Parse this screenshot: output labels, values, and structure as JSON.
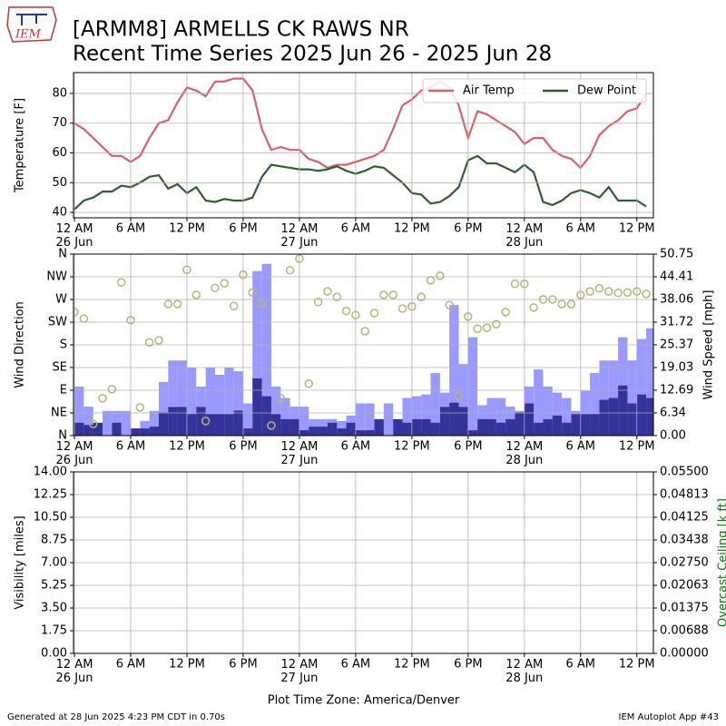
{
  "logo": "IEM",
  "title": "[ARMM8] ARMELLS CK RAWS NR",
  "subtitle": "Recent Time Series 2025 Jun 26 - 2025 Jun 28",
  "footer": {
    "left": "Generated at 28 Jun 2025 4:23 PM CDT in 0.70s",
    "right": "IEM Autoplot App #43"
  },
  "chart_data": [
    {
      "type": "line",
      "ylabel": "Temperature [F]",
      "grid": true,
      "legend": "upper right",
      "xlim": [
        "2025-06-25T23:54",
        "2025-06-28T13:46"
      ],
      "xticks": [
        {
          "value": "2025-06-26T00:00",
          "label": "12 AM\n26 Jun"
        },
        {
          "value": "2025-06-26T06:00",
          "label": "6 AM"
        },
        {
          "value": "2025-06-26T12:00",
          "label": "12 PM"
        },
        {
          "value": "2025-06-26T18:00",
          "label": "6 PM"
        },
        {
          "value": "2025-06-27T00:00",
          "label": "12 AM\n27 Jun"
        },
        {
          "value": "2025-06-27T06:00",
          "label": "6 AM"
        },
        {
          "value": "2025-06-27T12:00",
          "label": "12 PM"
        },
        {
          "value": "2025-06-27T18:00",
          "label": "6 PM"
        },
        {
          "value": "2025-06-28T00:00",
          "label": "12 AM\n28 Jun"
        },
        {
          "value": "2025-06-28T06:00",
          "label": "6 AM"
        },
        {
          "value": "2025-06-28T12:00",
          "label": "12 PM"
        }
      ],
      "ylim": [
        38.2,
        87.0
      ],
      "yticks": [
        40,
        50,
        60,
        70,
        80
      ],
      "x": [
        "2025-06-26T00:00",
        "2025-06-26T01:00",
        "2025-06-26T02:00",
        "2025-06-26T03:00",
        "2025-06-26T04:00",
        "2025-06-26T05:00",
        "2025-06-26T06:00",
        "2025-06-26T07:00",
        "2025-06-26T08:00",
        "2025-06-26T09:00",
        "2025-06-26T10:00",
        "2025-06-26T11:00",
        "2025-06-26T12:00",
        "2025-06-26T13:00",
        "2025-06-26T14:00",
        "2025-06-26T15:00",
        "2025-06-26T16:00",
        "2025-06-26T17:00",
        "2025-06-26T18:00",
        "2025-06-26T19:00",
        "2025-06-26T20:00",
        "2025-06-26T21:00",
        "2025-06-26T22:00",
        "2025-06-26T23:00",
        "2025-06-27T00:00",
        "2025-06-27T01:00",
        "2025-06-27T02:00",
        "2025-06-27T03:00",
        "2025-06-27T04:00",
        "2025-06-27T05:00",
        "2025-06-27T06:00",
        "2025-06-27T07:00",
        "2025-06-27T08:00",
        "2025-06-27T09:00",
        "2025-06-27T10:00",
        "2025-06-27T11:00",
        "2025-06-27T12:00",
        "2025-06-27T13:00",
        "2025-06-27T14:00",
        "2025-06-27T15:00",
        "2025-06-27T16:00",
        "2025-06-27T17:00",
        "2025-06-27T18:00",
        "2025-06-27T19:00",
        "2025-06-27T20:00",
        "2025-06-27T21:00",
        "2025-06-27T22:00",
        "2025-06-27T23:00",
        "2025-06-28T00:00",
        "2025-06-28T01:00",
        "2025-06-28T02:00",
        "2025-06-28T03:00",
        "2025-06-28T04:00",
        "2025-06-28T05:00",
        "2025-06-28T06:00",
        "2025-06-28T07:00",
        "2025-06-28T08:00",
        "2025-06-28T09:00",
        "2025-06-28T10:00",
        "2025-06-28T11:00",
        "2025-06-28T12:00",
        "2025-06-28T13:00"
      ],
      "series": [
        {
          "name": "Air Temp",
          "color": "#d9606b",
          "values": [
            70,
            68,
            65,
            62,
            59,
            59,
            57,
            59,
            65,
            70,
            71,
            77,
            82,
            81,
            79,
            84,
            84,
            85,
            85,
            81,
            68,
            61,
            62,
            61,
            61,
            58,
            57,
            55,
            56,
            56,
            57,
            58,
            59,
            61,
            68,
            76,
            78,
            81,
            82,
            84,
            82,
            76,
            65,
            74,
            73,
            71,
            69,
            67,
            63,
            65,
            65,
            61,
            59,
            58,
            55,
            59,
            66,
            69,
            71,
            74,
            75,
            80
          ]
        },
        {
          "name": "Dew Point",
          "color": "#2f5f31",
          "values": [
            41,
            44,
            45,
            47,
            47,
            49,
            48.5,
            50,
            52,
            52.5,
            48,
            49.5,
            46.5,
            48.5,
            44,
            43.5,
            44.5,
            44,
            44,
            45,
            52,
            56,
            55.5,
            55,
            54.5,
            54.5,
            54,
            54.5,
            55.5,
            54,
            53,
            54,
            55.5,
            55,
            52.5,
            50,
            46.5,
            46,
            43,
            43.5,
            45.5,
            48.5,
            57.5,
            59,
            56.5,
            56.5,
            55,
            53.5,
            56,
            53.5,
            43.5,
            42.5,
            44,
            46.5,
            47.5,
            46.5,
            45,
            48.5,
            44,
            44,
            44,
            42
          ]
        }
      ]
    },
    {
      "type": "wind",
      "ylabel": "Wind Direction",
      "y2label": "Wind Speed [mph]",
      "grid": true,
      "xlim": [
        "2025-06-25T23:54",
        "2025-06-28T13:46"
      ],
      "xticks": [
        {
          "value": "2025-06-26T00:00",
          "label": "12 AM\n26 Jun"
        },
        {
          "value": "2025-06-26T06:00",
          "label": "6 AM"
        },
        {
          "value": "2025-06-26T12:00",
          "label": "12 PM"
        },
        {
          "value": "2025-06-26T18:00",
          "label": "6 PM"
        },
        {
          "value": "2025-06-27T00:00",
          "label": "12 AM\n27 Jun"
        },
        {
          "value": "2025-06-27T06:00",
          "label": "6 AM"
        },
        {
          "value": "2025-06-27T12:00",
          "label": "12 PM"
        },
        {
          "value": "2025-06-27T18:00",
          "label": "6 PM"
        },
        {
          "value": "2025-06-28T00:00",
          "label": "12 AM\n28 Jun"
        },
        {
          "value": "2025-06-28T06:00",
          "label": "6 AM"
        },
        {
          "value": "2025-06-28T12:00",
          "label": "12 PM"
        }
      ],
      "ylim": [
        0,
        360
      ],
      "yticks": [
        {
          "value": 0,
          "label": "N"
        },
        {
          "value": 45,
          "label": "NE"
        },
        {
          "value": 90,
          "label": "E"
        },
        {
          "value": 135,
          "label": "SE"
        },
        {
          "value": 180,
          "label": "S"
        },
        {
          "value": 225,
          "label": "SW"
        },
        {
          "value": 270,
          "label": "W"
        },
        {
          "value": 315,
          "label": "NW"
        },
        {
          "value": 360,
          "label": "N"
        }
      ],
      "y2lim": [
        0,
        50.75
      ],
      "y2ticks": [
        {
          "value": 0,
          "label": "0.00"
        },
        {
          "value": 6.34375,
          "label": "6.34"
        },
        {
          "value": 12.6875,
          "label": "12.69"
        },
        {
          "value": 19.03125,
          "label": "19.03"
        },
        {
          "value": 25.375,
          "label": "25.37"
        },
        {
          "value": 31.71875,
          "label": "31.72"
        },
        {
          "value": 38.0625,
          "label": "38.06"
        },
        {
          "value": 44.40625,
          "label": "44.41"
        },
        {
          "value": 50.75,
          "label": "50.75"
        }
      ],
      "x": [
        "2025-06-26T00:00",
        "2025-06-26T01:00",
        "2025-06-26T02:00",
        "2025-06-26T03:00",
        "2025-06-26T04:00",
        "2025-06-26T05:00",
        "2025-06-26T06:00",
        "2025-06-26T07:00",
        "2025-06-26T08:00",
        "2025-06-26T09:00",
        "2025-06-26T10:00",
        "2025-06-26T11:00",
        "2025-06-26T12:00",
        "2025-06-26T13:00",
        "2025-06-26T14:00",
        "2025-06-26T15:00",
        "2025-06-26T16:00",
        "2025-06-26T17:00",
        "2025-06-26T18:00",
        "2025-06-26T19:00",
        "2025-06-26T20:00",
        "2025-06-26T21:00",
        "2025-06-26T22:00",
        "2025-06-26T23:00",
        "2025-06-27T00:00",
        "2025-06-27T01:00",
        "2025-06-27T02:00",
        "2025-06-27T03:00",
        "2025-06-27T04:00",
        "2025-06-27T05:00",
        "2025-06-27T06:00",
        "2025-06-27T07:00",
        "2025-06-27T08:00",
        "2025-06-27T09:00",
        "2025-06-27T10:00",
        "2025-06-27T11:00",
        "2025-06-27T12:00",
        "2025-06-27T13:00",
        "2025-06-27T14:00",
        "2025-06-27T15:00",
        "2025-06-27T16:00",
        "2025-06-27T17:00",
        "2025-06-27T18:00",
        "2025-06-27T19:00",
        "2025-06-27T20:00",
        "2025-06-27T21:00",
        "2025-06-27T22:00",
        "2025-06-27T23:00",
        "2025-06-28T00:00",
        "2025-06-28T01:00",
        "2025-06-28T02:00",
        "2025-06-28T03:00",
        "2025-06-28T04:00",
        "2025-06-28T05:00",
        "2025-06-28T06:00",
        "2025-06-28T07:00",
        "2025-06-28T08:00",
        "2025-06-28T09:00",
        "2025-06-28T10:00",
        "2025-06-28T11:00",
        "2025-06-28T12:00",
        "2025-06-28T13:00"
      ],
      "series": [
        {
          "type": "bar",
          "axis": "y2",
          "color": "#9999ff",
          "values": [
            13.7,
            8.1,
            3.5,
            6.9,
            6.9,
            6.9,
            2,
            4.1,
            6.9,
            15,
            21,
            21,
            19,
            13.7,
            19,
            17,
            19,
            18,
            9,
            46,
            48,
            13.7,
            10.5,
            8.1,
            8.1,
            4.6,
            4.6,
            4.6,
            4.1,
            5.6,
            9,
            9,
            2,
            9,
            0,
            10.5,
            11,
            11.5,
            17.5,
            12,
            36.5,
            20,
            27.5,
            8.5,
            10.5,
            10.5,
            8.1,
            6.9,
            13.7,
            18.5,
            13.7,
            12,
            10.5,
            6.9,
            12.5,
            17.5,
            21,
            21,
            27.5,
            21,
            27,
            30
          ]
        },
        {
          "type": "bar",
          "axis": "y2",
          "color": "#333399",
          "values": [
            3.6,
            3,
            3.6,
            0,
            3.6,
            0,
            2,
            2,
            2.5,
            6.5,
            8,
            8,
            6,
            8,
            6,
            6,
            6,
            7,
            2,
            16,
            11,
            6,
            4.6,
            4.6,
            1.5,
            2.5,
            2.5,
            3.6,
            2,
            3.6,
            1.5,
            1.5,
            4.6,
            0,
            4.6,
            3.6,
            4.6,
            4.6,
            3.6,
            8,
            9.2,
            8,
            1.5,
            4.6,
            4.6,
            3.6,
            4.6,
            6.5,
            9,
            3.6,
            4.6,
            5.6,
            3.6,
            6,
            6,
            6,
            10,
            10.5,
            14,
            9,
            11.5,
            10.5
          ]
        },
        {
          "type": "scatter",
          "color": "#b5b57a",
          "values": [
            245,
            232,
            23,
            74,
            92,
            304,
            229,
            56,
            185,
            189,
            261,
            261,
            329,
            279,
            29,
            293,
            302,
            257,
            319,
            284,
            261,
            20,
            74,
            328,
            351,
            103,
            265,
            286,
            275,
            247,
            239,
            207,
            243,
            279,
            279,
            252,
            256,
            275,
            308,
            317,
            259,
            79,
            236,
            212,
            214,
            221,
            245,
            301,
            301,
            254,
            270,
            270,
            261,
            261,
            279,
            286,
            292,
            286,
            283,
            284,
            286,
            281
          ]
        }
      ]
    },
    {
      "type": "empty",
      "ylabel": "Visibility [miles]",
      "y2label": "Overcast Ceiling [k ft]",
      "y2color": "#008000",
      "grid": true,
      "xlabel": "Plot Time Zone: America/Denver",
      "xlim": [
        "2025-06-25T23:54",
        "2025-06-28T13:46"
      ],
      "xticks": [
        {
          "value": "2025-06-26T00:00",
          "label": "12 AM\n26 Jun"
        },
        {
          "value": "2025-06-26T06:00",
          "label": "6 AM"
        },
        {
          "value": "2025-06-26T12:00",
          "label": "12 PM"
        },
        {
          "value": "2025-06-26T18:00",
          "label": "6 PM"
        },
        {
          "value": "2025-06-27T00:00",
          "label": "12 AM\n27 Jun"
        },
        {
          "value": "2025-06-27T06:00",
          "label": "6 AM"
        },
        {
          "value": "2025-06-27T12:00",
          "label": "12 PM"
        },
        {
          "value": "2025-06-27T18:00",
          "label": "6 PM"
        },
        {
          "value": "2025-06-28T00:00",
          "label": "12 AM\n28 Jun"
        },
        {
          "value": "2025-06-28T06:00",
          "label": "6 AM"
        },
        {
          "value": "2025-06-28T12:00",
          "label": "12 PM"
        }
      ],
      "ylim": [
        0,
        14
      ],
      "yticks": [
        {
          "value": 0,
          "label": "0.00"
        },
        {
          "value": 1.75,
          "label": "1.75"
        },
        {
          "value": 3.5,
          "label": "3.50"
        },
        {
          "value": 5.25,
          "label": "5.25"
        },
        {
          "value": 7,
          "label": "7.00"
        },
        {
          "value": 8.75,
          "label": "8.75"
        },
        {
          "value": 10.5,
          "label": "10.50"
        },
        {
          "value": 12.25,
          "label": "12.25"
        },
        {
          "value": 14,
          "label": "14.00"
        }
      ],
      "y2lim": [
        0,
        0.055
      ],
      "y2ticks": [
        {
          "value": 0,
          "label": "0.00000"
        },
        {
          "value": 0.006875,
          "label": "0.00688"
        },
        {
          "value": 0.01375,
          "label": "0.01375"
        },
        {
          "value": 0.020625,
          "label": "0.02063"
        },
        {
          "value": 0.0275,
          "label": "0.02750"
        },
        {
          "value": 0.034375,
          "label": "0.03438"
        },
        {
          "value": 0.04125,
          "label": "0.04125"
        },
        {
          "value": 0.048125,
          "label": "0.04813"
        },
        {
          "value": 0.055,
          "label": "0.05500"
        }
      ]
    }
  ]
}
